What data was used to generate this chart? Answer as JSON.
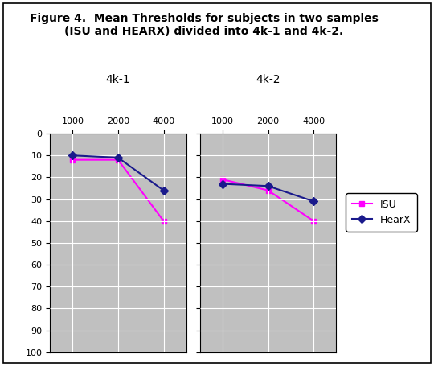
{
  "title_line1": "Figure 4.  Mean Thresholds for subjects in two samples",
  "title_line2": "(ISU and HEARX) divided into 4k-1 and 4k-2.",
  "subplot_labels": [
    "4k-1",
    "4k-2"
  ],
  "x_tick_labels": [
    "1000",
    "2000",
    "4000"
  ],
  "y_min": 0,
  "y_max": 100,
  "y_step": 10,
  "isu_color": "#FF00FF",
  "hearx_color": "#1a1a8c",
  "plot_bg_color": "#C0C0C0",
  "fig_bg_color": "#FFFFFF",
  "data": {
    "4k1_ISU": [
      12,
      12,
      40
    ],
    "4k1_HearX": [
      10,
      11,
      26
    ],
    "4k2_ISU": [
      21,
      26,
      40
    ],
    "4k2_HearX": [
      23,
      24,
      31
    ]
  },
  "legend_labels": [
    "ISU",
    "HearX"
  ],
  "marker_ISU": "s",
  "marker_HearX": "D",
  "linewidth": 1.5,
  "markersize": 5,
  "title_fontsize": 10,
  "axis_fontsize": 8,
  "label_fontsize": 10
}
